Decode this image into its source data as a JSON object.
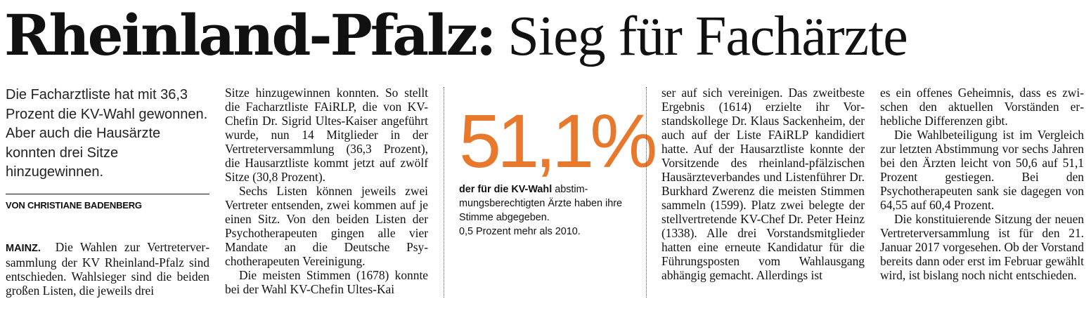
{
  "headline": {
    "bold": "Rheinland-Pfalz:",
    "light": "Sieg für Fachärzte"
  },
  "lead": "Die Facharztliste hat mit 36,3 Prozent die KV-Wahl gewonnen. Aber auch die Hausärzte konnten drei Sitze hinzugewinnen.",
  "byline": "VON CHRISTIANE BADENBERG",
  "dateline": "MAINZ.",
  "column1_text": "Die Wahlen zur Vertreterver­sammlung der KV Rheinland-Pfalz sind entschieden. Wahlsieger sind die beiden großen Listen, die jeweils drei",
  "column2_paragraphs": [
    "Sitze hinzugewinnen konnten. So stellt die Facharztliste FAiRLP, die von KV-Chefin Dr. Sigrid Ultes-Kaiser angeführt wurde, nun 14 Mitglieder in der Vertreterversammlung (36,3 Pro­zent), die Hausarztliste kommt jetzt auf zwölf Sitze (30,8 Prozent).",
    "Sechs Listen können jeweils zwei Vertreter entsenden, zwei kommen auf je einen Sitz. Von den beiden Lis­ten der Psychotherapeuten gingen al­le vier Mandate an die Deutsche Psy­chotherapeuten Vereinigung.",
    "Die meisten Stimmen (1678) konn­te bei der Wahl KV-Chefin Ultes-Kai­"
  ],
  "factbox": {
    "number": "51,1%",
    "text_bold": "der für die KV-Wahl",
    "text_rest": " abstim­mungsberechtigten Ärzte haben ihre Stimme abgegeben.",
    "note": "0,5 Prozent mehr als 2010."
  },
  "column4_paragraphs": [
    "ser auf sich vereinigen. Das zweitbes­te Ergebnis (1614) erzielte ihr Vor­standskollege Dr. Klaus Sackenheim, der auch auf der Liste FAiRLP kandi­diert hatte. Auf der Hausarztliste konnte der Vorsitzende des rhein­land-pfälzischen Hausärzteverbandes und Listenführer Dr. Burkhard Zwe­renz die meisten Stimmen sammeln (1599). Platz zwei belegte der stellver­tretende KV-Chef Dr. Peter Heinz (1338). Alle drei Vorstandsmitglieder hatten eine erneute Kandidatur für die Führungsposten vom Wahlaus­gang abhängig gemacht. Allerdings ist"
  ],
  "column5_paragraphs": [
    "es ein offenes Geheimnis, dass es zwi­schen den aktuellen Vorständen er­hebliche Differenzen gibt.",
    "Die Wahlbeteiligung ist im Ver­gleich zur letzten Abstimmung vor sechs Jahren bei den Ärzten leicht von 50,6 auf 51,1 Prozent gestiegen. Bei den Psychotherapeuten sank sie dagegen von 64,55 auf 60,4 Prozent.",
    "Die konstituierende Sitzung der neuen Vertreterversammlung ist für den 21. Januar 2017 vorgesehen. Ob der Vorstand bereits dann oder erst im Februar gewählt wird, ist bislang noch nicht entschieden."
  ],
  "colors": {
    "accent": "#e8782b",
    "text": "#111111"
  }
}
